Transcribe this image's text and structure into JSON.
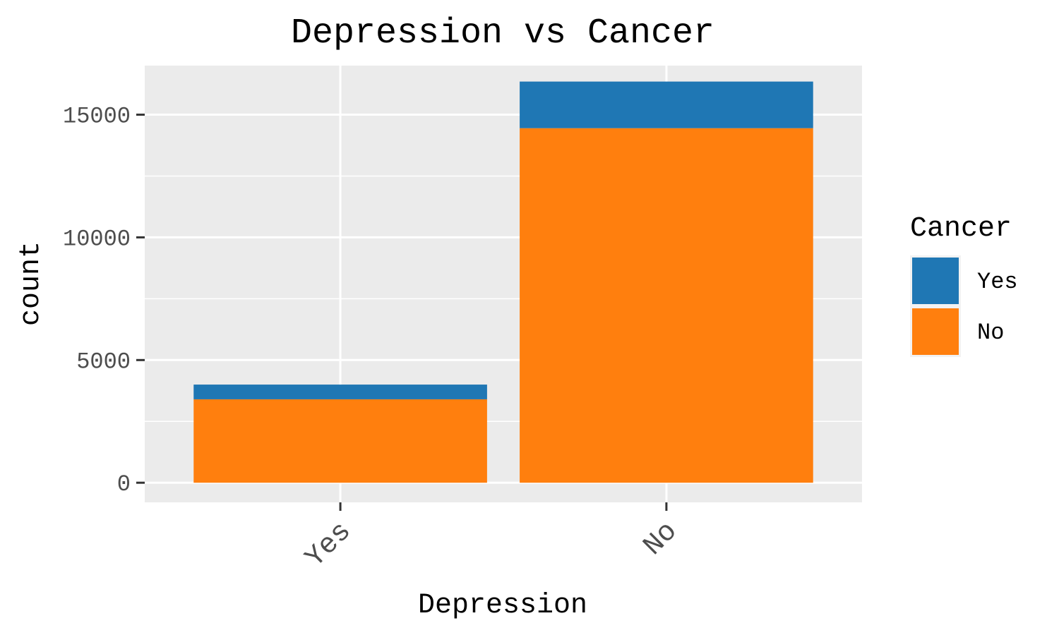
{
  "chart_data": {
    "type": "bar",
    "stacked": true,
    "title": "Depression vs Cancer",
    "xlabel": "Depression",
    "ylabel": "count",
    "categories": [
      "Yes",
      "No"
    ],
    "series": [
      {
        "name": "Yes",
        "values": [
          600,
          1900
        ],
        "color": "#1f77b4"
      },
      {
        "name": "No",
        "values": [
          3400,
          14450
        ],
        "color": "#ff7f0e"
      }
    ],
    "ylim": [
      -800,
      17000
    ],
    "yticks": [
      0,
      5000,
      10000,
      15000
    ],
    "ytick_labels": [
      "0",
      "5000",
      "10000",
      "15000"
    ],
    "grid": true,
    "legend": {
      "title": "Cancer",
      "position": "right",
      "entries": [
        "Yes",
        "No"
      ]
    },
    "panel_color": "#ebebeb"
  }
}
